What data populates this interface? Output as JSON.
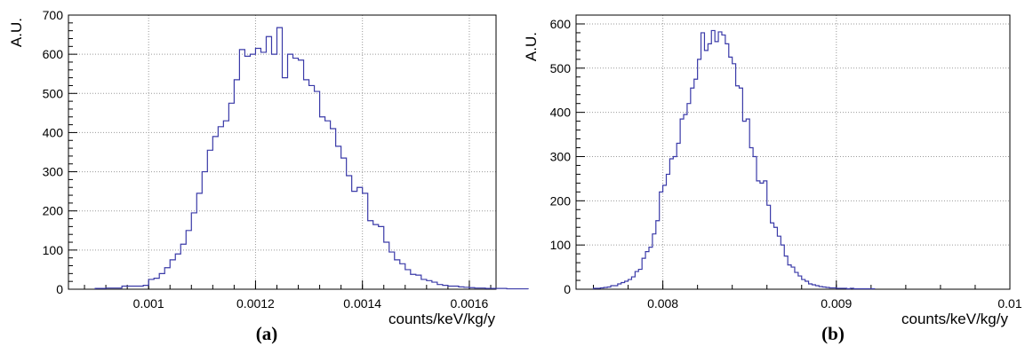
{
  "figure": {
    "hist_color": "#3a3aa8",
    "panels": [
      {
        "label": "(a)",
        "ylabel": "A.U.",
        "xlabel": "counts/keV/kg/y"
      },
      {
        "label": "(b)",
        "ylabel": "A.U.",
        "xlabel": "counts/keV/kg/y"
      }
    ]
  },
  "chart_data": [
    {
      "type": "bar",
      "style": "step-histogram",
      "title": "",
      "xlabel": "counts/keV/kg/y",
      "ylabel": "A.U.",
      "xlim": [
        0.00085,
        0.00165
      ],
      "ylim": [
        0,
        700
      ],
      "xticks": [
        0.001,
        0.0012,
        0.0014,
        0.0016
      ],
      "xtick_labels": [
        "0.001",
        "0.0012",
        "0.0014",
        "0.0016"
      ],
      "yticks": [
        0,
        100,
        200,
        300,
        400,
        500,
        600,
        700
      ],
      "ytick_labels": [
        "0",
        "100",
        "200",
        "300",
        "400",
        "500",
        "600",
        "700"
      ],
      "grid": true,
      "legend": "none",
      "series": [
        {
          "bin_start": 0.0009,
          "bin_width": 1e-05,
          "values": [
            2,
            2,
            3,
            3,
            3,
            8,
            8,
            8,
            8,
            10,
            25,
            28,
            40,
            55,
            75,
            90,
            115,
            150,
            195,
            245,
            300,
            355,
            390,
            415,
            430,
            475,
            535,
            612,
            595,
            600,
            615,
            605,
            645,
            600,
            668,
            540,
            600,
            590,
            585,
            535,
            520,
            505,
            440,
            430,
            410,
            365,
            335,
            290,
            250,
            260,
            245,
            175,
            165,
            160,
            120,
            95,
            75,
            65,
            50,
            38,
            36,
            25,
            22,
            18,
            12,
            10,
            8,
            8,
            6,
            5,
            4,
            3,
            3,
            2,
            2,
            2,
            2,
            1,
            1,
            1,
            1
          ]
        }
      ]
    },
    {
      "type": "bar",
      "style": "step-histogram",
      "title": "",
      "xlabel": "counts/keV/kg/y",
      "ylabel": "A.U.",
      "xlim": [
        0.0075,
        0.01
      ],
      "ylim": [
        0,
        620
      ],
      "xticks": [
        0.008,
        0.009,
        0.01
      ],
      "xtick_labels": [
        "0.008",
        "0.009",
        "0.01"
      ],
      "yticks": [
        0,
        100,
        200,
        300,
        400,
        500,
        600
      ],
      "ytick_labels": [
        "0",
        "100",
        "200",
        "300",
        "400",
        "500",
        "600"
      ],
      "grid": true,
      "legend": "none",
      "series": [
        {
          "bin_start": 0.0076,
          "bin_width": 2e-05,
          "values": [
            2,
            2,
            3,
            4,
            5,
            8,
            8,
            12,
            15,
            18,
            22,
            28,
            40,
            45,
            70,
            85,
            95,
            125,
            155,
            220,
            235,
            260,
            295,
            300,
            330,
            385,
            395,
            420,
            455,
            475,
            520,
            580,
            540,
            555,
            585,
            560,
            582,
            575,
            555,
            525,
            510,
            460,
            455,
            380,
            385,
            320,
            300,
            245,
            240,
            245,
            190,
            150,
            140,
            120,
            100,
            75,
            55,
            50,
            38,
            30,
            22,
            18,
            12,
            10,
            8,
            6,
            5,
            4,
            3,
            3,
            2,
            2,
            2,
            1,
            2,
            1,
            1,
            1,
            1,
            1,
            1
          ]
        }
      ]
    }
  ]
}
